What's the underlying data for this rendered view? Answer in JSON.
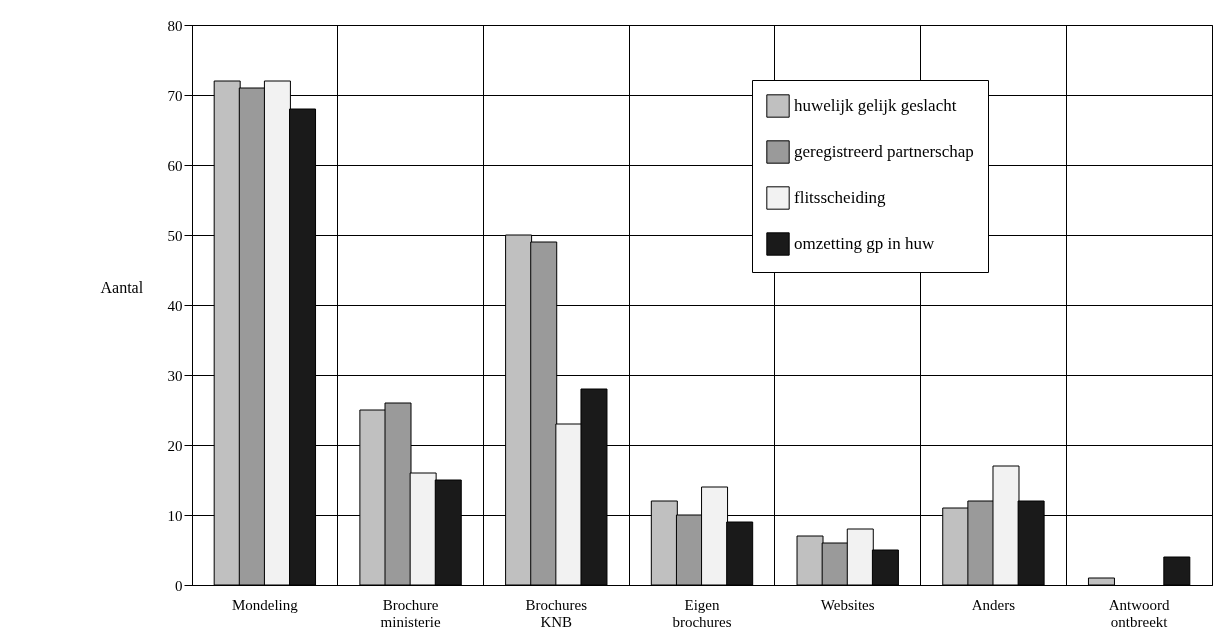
{
  "chart_data": {
    "type": "bar",
    "ylabel": "Aantal",
    "categories": [
      "Mondeling",
      "Brochure ministerie",
      "Brochures KNB",
      "Eigen brochures",
      "Websites",
      "Anders",
      "Antwoord ontbreekt"
    ],
    "series": [
      {
        "name": "huwelijk gelijk geslacht",
        "color": "#c0c0c0",
        "values": [
          72,
          25,
          50,
          12,
          7,
          11,
          1
        ]
      },
      {
        "name": "geregistreerd partnerschap",
        "color": "#9a9a9a",
        "values": [
          71,
          26,
          49,
          10,
          6,
          12,
          null
        ]
      },
      {
        "name": "flitsscheiding",
        "color": "#f2f2f2",
        "values": [
          72,
          16,
          23,
          14,
          8,
          17,
          null
        ]
      },
      {
        "name": "omzetting gp in huw",
        "color": "#1a1a1a",
        "values": [
          68,
          15,
          28,
          9,
          5,
          12,
          4
        ]
      }
    ],
    "ylim": [
      0,
      80
    ],
    "yticks": [
      0,
      10,
      20,
      30,
      40,
      50,
      60,
      70,
      80
    ],
    "grid": true,
    "legend": "top right"
  }
}
